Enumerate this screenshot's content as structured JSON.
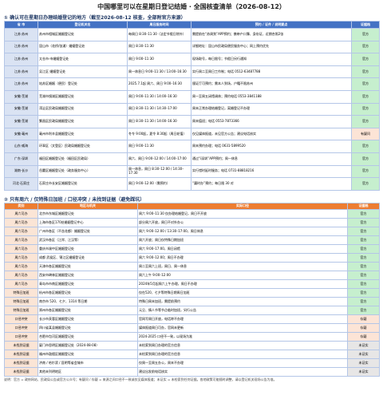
{
  "header": {
    "title": "中国哪里可以在星期日登记结婚 · 全国核查清单（2026-08-12）"
  },
  "section1": {
    "heading": "① 确认可在星期日办理结婚登记的地方（截至2026-08-12 核查，全部附官方来源）",
    "columns": [
      "省 市",
      "登记机关名",
      "周日服务时间",
      "预约 / 证件 / 说明要点",
      "证据档"
    ],
    "rows": [
      [
        "江苏·苏州",
        "苏州市相城区婚姻登记处",
        "每周日 8:30–11:30（法定节假日除外）",
        "需提前在“苏周到”APP预约；携带户口簿、身份证、近期合照2张",
        "官方"
      ],
      [
        "江苏·苏州",
        "昆山市（花桥/张浦）婚姻登记处",
        "周日 8:30–11:30",
        "详细地址：昆山市民政局便民服务中心；网上预约优先",
        "官方"
      ],
      [
        "江苏·苏州",
        "太仓市·市婚姻登记处",
        "周日 9:00–11:30",
        "现场取号，每日限号；节假日另行通知",
        "官方"
      ],
      [
        "江苏·苏州",
        "吴江区 婚姻登记处",
        "周一休息日 9:00–11:30 / 13:00–16:30",
        "实行周二至周日工作制；电话 0512-63487788",
        "官方"
      ],
      [
        "江苏·苏州",
        "姑苏区婚姻（便民）登记处",
        "2025.7.1起 周六、周日 9:00–16:30",
        "颁证厅可预约；需本人到场，户籍不限苏州",
        "官方"
      ],
      [
        "安徽·芜湖",
        "芜湖市镜湖区婚姻登记处",
        "周日 9:00–11:30 / 14:00–16:30",
        "周一至周五闭馆调休；预约电话 0553-3841188",
        "官方"
      ],
      [
        "安徽·芜湖",
        "湾沚区民政局婚姻登记处",
        "周日 8:30–11:30 / 14:30–17:00",
        "周末正常办理结婚登记，离婚登记不办理",
        "官方"
      ],
      [
        "安徽·芜湖",
        "繁昌区民政局婚姻登记处",
        "周日 8:30–11:30 / 14:00–16:30",
        "周末值班；电话 0553-7873366",
        "官方"
      ],
      [
        "安徽·亳州",
        "亳州市利辛县婚姻登记处",
        "冬令 9:00起，夏令 8:30起（周日轮值）",
        "仅见媒体报道，未见官方公告；建议电话核实",
        "有疑问"
      ],
      [
        "山东·威海",
        "环翠区（文登区）民政局婚姻登记处",
        "周日 9:00–11:30",
        "周末预约办理；电话 0631-5899520",
        "官方"
      ],
      [
        "广东·深圳",
        "福田区婚姻登记处（福田区民政局）",
        "周六、周日 9:00–12:00 / 14:00–17:00",
        "通过“i深圳”APP预约；周一休息",
        "官方"
      ],
      [
        "湖南·长沙",
        "岳麓区婚姻登记处（政务服务中心）",
        "周一休息，周日 8:30–12:00 / 14:30–17:30",
        "实行错时延时服务；电话 0731-88818216",
        "官方"
      ],
      [
        "河北·石家庄",
        "石家庄市长安区婚姻登记处",
        "周日 9:00–12:00（需预约）",
        "“冀时办”预约；每日限 30 对",
        "官方"
      ]
    ]
  },
  "section2": {
    "heading": "② 只有周六 / 仅特殊日加班 / 口径冲突 / 未找到证据（避免踩坑）",
    "columns": [
      "类别",
      "地区与机关",
      "实际口径",
      "证据档"
    ],
    "rows": [
      [
        "周六可办",
        "北京市东城区婚姻登记处",
        "周六 9:00–11:30 仅办理结婚登记，周日不开放",
        "官方"
      ],
      [
        "周六可办",
        "上海市各区170处婚姻登记中心",
        "部分周六开放，周日不对外办公",
        "官方"
      ],
      [
        "周六可办",
        "广州市各区（不含花都）婚姻登记处",
        "周六 9:00–12:00 / 13:30–17:00，周日休息",
        "官方"
      ],
      [
        "周六可办",
        "武汉市各区（江岸、江汉等）",
        "周六开放；周日仅特殊日期加班",
        "官方"
      ],
      [
        "周六可办",
        "重庆市渝中区婚姻登记处",
        "周六 9:00–17:00，周日闭馆",
        "官方"
      ],
      [
        "周六可办",
        "成都 武侯区、锦江区婚姻登记处",
        "周六 9:00–12:00；周日不办理",
        "官方"
      ],
      [
        "周六可办",
        "天津市各区婚姻登记处",
        "周二至周六上班，周日、周一休息",
        "官方"
      ],
      [
        "周六可办",
        "西安市碑林区婚姻登记处",
        "周六上午 9:00–12:00",
        "官方"
      ],
      [
        "周六可办",
        "青岛市市南区婚姻登记处",
        "2024年5月起周六上午办理，周日不办理",
        "官方"
      ],
      [
        "特殊日加班",
        "杭州市各区婚姻登记处",
        "仅在520、七夕等特殊日期周日加班",
        "官方"
      ],
      [
        "特殊日加班",
        "南京市 520、七夕、1314 等日期",
        "特殊日周末加班，需提前预约",
        "官方"
      ],
      [
        "特殊日加班",
        "郑州市各区婚姻登记处",
        "元旦、情人节等节点临时加班，另行公告",
        "官方"
      ],
      [
        "口径冲突",
        "长沙市芙蓉区婚姻登记处",
        "官网写周日开放，电话称不办理",
        "存疑"
      ],
      [
        "口径冲突",
        "四川省某县婚姻登记处",
        "媒体报道周日可办，官网未更新",
        "存疑"
      ],
      [
        "口径冲突",
        "合肥市包河区婚姻登记处",
        "2024-2025 口径不一致，以现场为准",
        "存疑"
      ],
      [
        "未找到证据",
        "厦门市思明区婚姻登记处（2024-08-08）",
        "未检索到周日办理的官方信息",
        "未证实"
      ],
      [
        "未找到证据",
        "福州市鼓楼区婚姻登记处",
        "未检索到周日办理的官方信息",
        "未证实"
      ],
      [
        "未找到证据",
        "济南 / 哈尔滨 / 昆明等省会城市",
        "仅周一至周五办公，周末不办理",
        "未证实"
      ],
      [
        "未找到证据",
        "其他未列明地区",
        "建议出发前电话核实",
        "未证实"
      ]
    ]
  },
  "footer": {
    "note": "说明：官方 = 政府网站、民政局公告或官方公众号；有疑问 / 存疑 = 来源之间口径不一致或仅见媒体报道；未证实 = 未检索到任何证据。各地政策可能随时调整，请以登记机关现场公告为准。"
  },
  "evidence_colors": {
    "官方": "#c6efce",
    "有疑问": "#fce4d6",
    "存疑": "#fce4d6",
    "未证实": "#e7e6e6"
  }
}
